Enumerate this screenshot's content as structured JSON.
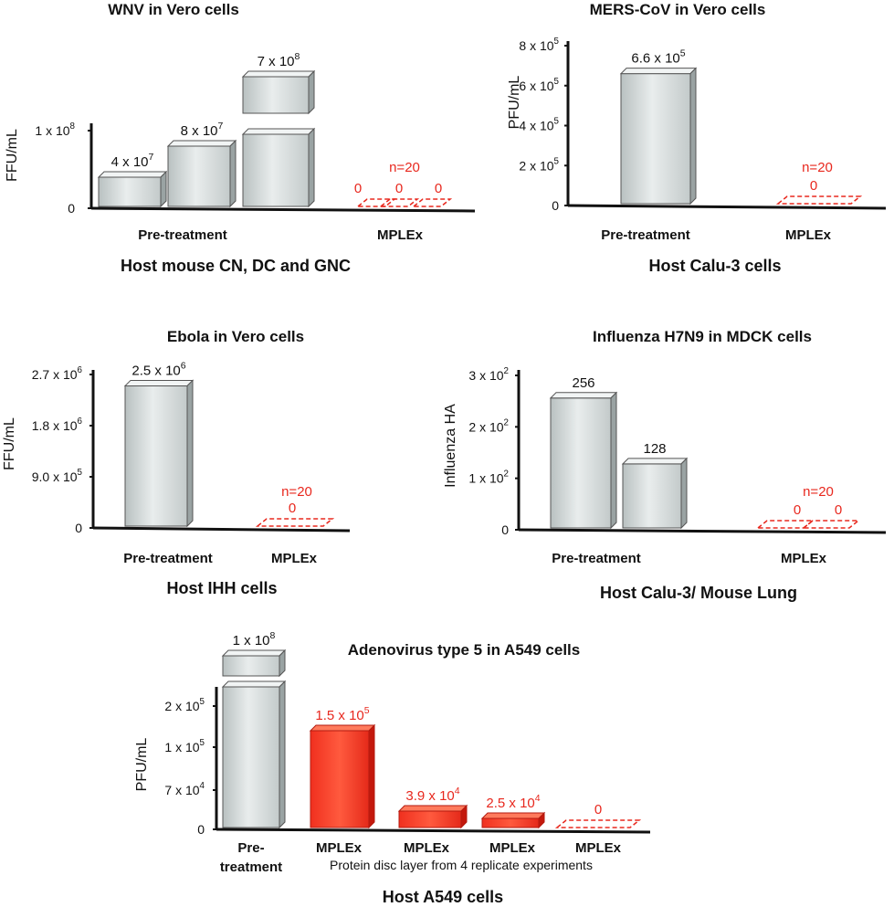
{
  "chart_data": [
    {
      "type": "bar",
      "title": "WNV in Vero cells",
      "host_label": "Host mouse CN, DC and GNC",
      "ylabel": "FFU/mL",
      "y_ticks": [
        {
          "value": 0,
          "label": "0"
        },
        {
          "value": 100000000,
          "label": "1 x 10^8"
        }
      ],
      "groups": [
        "Pre-treatment",
        "MPLEx"
      ],
      "bars": [
        {
          "group": "Pre-treatment",
          "value": 40000000,
          "label": "4 x 10^7"
        },
        {
          "group": "Pre-treatment",
          "value": 80000000,
          "label": "8 x 10^7"
        },
        {
          "group": "Pre-treatment",
          "value": 700000000,
          "label": "7 x 10^8",
          "axis_break": true
        },
        {
          "group": "MPLEx",
          "value": 0,
          "label": "0",
          "highlight": true
        },
        {
          "group": "MPLEx",
          "value": 0,
          "label": "0",
          "highlight": true
        },
        {
          "group": "MPLEx",
          "value": 0,
          "label": "0",
          "highlight": true
        }
      ],
      "annotations": [
        "n=20"
      ]
    },
    {
      "type": "bar",
      "title": "MERS-CoV in Vero cells",
      "host_label": "Host Calu-3 cells",
      "ylabel": "PFU/mL",
      "y_ticks": [
        {
          "value": 0,
          "label": "0"
        },
        {
          "value": 200000,
          "label": "2 x 10^5"
        },
        {
          "value": 400000,
          "label": "4 x 10^5"
        },
        {
          "value": 600000,
          "label": "6 x 10^5"
        },
        {
          "value": 800000,
          "label": "8 x 10^5"
        }
      ],
      "groups": [
        "Pre-treatment",
        "MPLEx"
      ],
      "bars": [
        {
          "group": "Pre-treatment",
          "value": 660000,
          "label": "6.6 x 10^5"
        },
        {
          "group": "MPLEx",
          "value": 0,
          "label": "0",
          "highlight": true
        }
      ],
      "annotations": [
        "n=20"
      ]
    },
    {
      "type": "bar",
      "title": "Ebola  in Vero cells",
      "host_label": "Host IHH cells",
      "ylabel": "FFU/mL",
      "y_ticks": [
        {
          "value": 0,
          "label": "0"
        },
        {
          "value": 900000,
          "label": "9.0 x 10^5"
        },
        {
          "value": 1800000,
          "label": "1.8 x 10^6"
        },
        {
          "value": 2700000,
          "label": "2.7 x 10^6"
        }
      ],
      "groups": [
        "Pre-treatment",
        "MPLEx"
      ],
      "bars": [
        {
          "group": "Pre-treatment",
          "value": 2500000,
          "label": "2.5 x 10^6"
        },
        {
          "group": "MPLEx",
          "value": 0,
          "label": "0",
          "highlight": true
        }
      ],
      "annotations": [
        "n=20"
      ]
    },
    {
      "type": "bar",
      "title": "Influenza H7N9 in MDCK cells",
      "host_label": "Host Calu-3/ Mouse Lung",
      "ylabel": "Influenza HA",
      "y_ticks": [
        {
          "value": 0,
          "label": "0"
        },
        {
          "value": 100,
          "label": "1 x 10^2"
        },
        {
          "value": 200,
          "label": "2 x 10^2"
        },
        {
          "value": 300,
          "label": "3 x 10^2"
        }
      ],
      "groups": [
        "Pre-treatment",
        "MPLEx"
      ],
      "bars": [
        {
          "group": "Pre-treatment",
          "value": 256,
          "label": "256"
        },
        {
          "group": "Pre-treatment",
          "value": 128,
          "label": "128"
        },
        {
          "group": "MPLEx",
          "value": 0,
          "label": "0",
          "highlight": true
        },
        {
          "group": "MPLEx",
          "value": 0,
          "label": "0",
          "highlight": true
        }
      ],
      "annotations": [
        "n=20"
      ]
    },
    {
      "type": "bar",
      "title": "Adenovirus type 5 in A549 cells",
      "host_label": "Host A549 cells",
      "ylabel": "PFU/mL",
      "y_ticks": [
        {
          "value": 0,
          "label": "0"
        },
        {
          "value": 70000,
          "label": "7 x 10^4"
        },
        {
          "value": 100000,
          "label": "1 x 10^5"
        },
        {
          "value": 200000,
          "label": "2 x 10^5"
        }
      ],
      "categories": [
        "Pre-\ntreatment",
        "MPLEx",
        "MPLEx",
        "MPLEx",
        "MPLEx"
      ],
      "category_sublabel": "Protein disc layer from 4 replicate experiments",
      "bars": [
        {
          "group": "Pre-treatment",
          "value": 100000000,
          "label": "1 x 10^8",
          "axis_break": true
        },
        {
          "group": "MPLEx",
          "value": 150000,
          "label": "1.5 x 10^5",
          "highlight": true
        },
        {
          "group": "MPLEx",
          "value": 39000,
          "label": "3.9 x 10^4",
          "highlight": true
        },
        {
          "group": "MPLEx",
          "value": 25000,
          "label": "2.5 x 10^4",
          "highlight": true
        },
        {
          "group": "MPLEx",
          "value": 0,
          "label": "0",
          "highlight": true
        }
      ]
    }
  ]
}
